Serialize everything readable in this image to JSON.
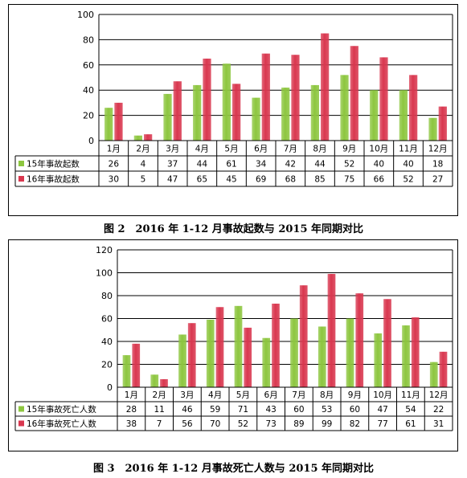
{
  "colors": {
    "series_2015": "#8dc63f",
    "series_2016": "#d9374f",
    "grid": "#000000",
    "table_border": "#000000"
  },
  "captions": {
    "fig2": "图 2　2016 年 1-12 月事故起数与 2015 年同期对比",
    "fig3": "图 3　2016 年 1-12 月事故死亡人数与 2015 年同期对比"
  },
  "chart_data": [
    {
      "type": "bar",
      "categories": [
        "1月",
        "2月",
        "3月",
        "4月",
        "5月",
        "6月",
        "7月",
        "8月",
        "9月",
        "10月",
        "11月",
        "12月"
      ],
      "series": [
        {
          "name": "15年事故起数",
          "values": [
            26,
            4,
            37,
            44,
            61,
            34,
            42,
            44,
            52,
            40,
            40,
            18
          ]
        },
        {
          "name": "16年事故起数",
          "values": [
            30,
            5,
            47,
            65,
            45,
            69,
            68,
            85,
            75,
            66,
            52,
            27
          ]
        }
      ],
      "ylim": [
        0,
        100
      ],
      "yticks": [
        0,
        20,
        40,
        60,
        80,
        100
      ],
      "grid": true,
      "legend": "data-table"
    },
    {
      "type": "bar",
      "categories": [
        "1月",
        "2月",
        "3月",
        "4月",
        "5月",
        "6月",
        "7月",
        "8月",
        "9月",
        "10月",
        "11月",
        "12月"
      ],
      "series": [
        {
          "name": "15年事故死亡人数",
          "values": [
            28,
            11,
            46,
            59,
            71,
            43,
            60,
            53,
            60,
            47,
            54,
            22
          ]
        },
        {
          "name": "16年事故死亡人数",
          "values": [
            38,
            7,
            56,
            70,
            52,
            73,
            89,
            99,
            82,
            77,
            61,
            31
          ]
        }
      ],
      "ylim": [
        0,
        120
      ],
      "yticks": [
        0,
        20,
        40,
        60,
        80,
        100,
        120
      ],
      "grid": true,
      "legend": "data-table"
    }
  ]
}
